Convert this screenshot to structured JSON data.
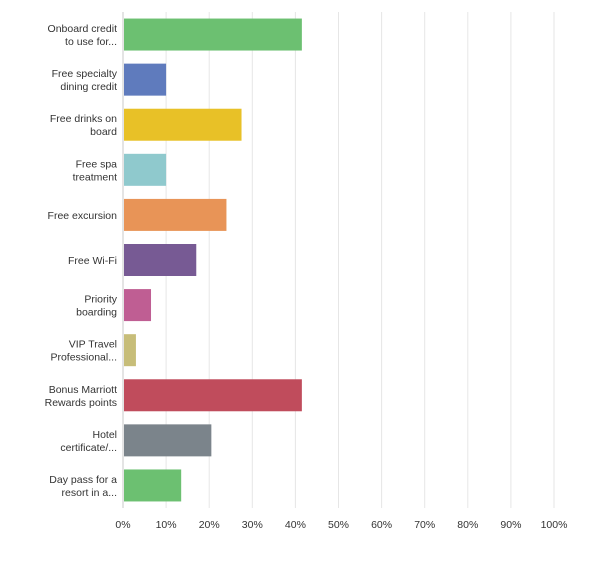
{
  "chart_data": {
    "type": "bar",
    "orientation": "horizontal",
    "categories": [
      [
        "Onboard credit",
        "to use for..."
      ],
      [
        "Free specialty",
        "dining credit"
      ],
      [
        "Free drinks on",
        "board"
      ],
      [
        "Free spa",
        "treatment"
      ],
      [
        "Free excursion"
      ],
      [
        "Free Wi-Fi"
      ],
      [
        "Priority",
        "boarding"
      ],
      [
        "VIP Travel",
        "Professional..."
      ],
      [
        "Bonus Marriott",
        "Rewards points"
      ],
      [
        "Hotel",
        "certificate/..."
      ],
      [
        "Day pass for a",
        "resort in a..."
      ]
    ],
    "values": [
      41.5,
      10,
      27.5,
      10,
      24,
      17,
      6.5,
      3,
      41.5,
      20.5,
      13.5
    ],
    "colors": [
      "#6cc071",
      "#5f7bbd",
      "#e8c127",
      "#8fc9cd",
      "#e89457",
      "#775a94",
      "#bf5e93",
      "#c7bd79",
      "#c04c5c",
      "#7b848b",
      "#6cc071"
    ],
    "xlim": [
      0,
      100
    ],
    "ticks": [
      0,
      10,
      20,
      30,
      40,
      50,
      60,
      70,
      80,
      90,
      100
    ],
    "tick_suffix": "%",
    "grid": true
  }
}
